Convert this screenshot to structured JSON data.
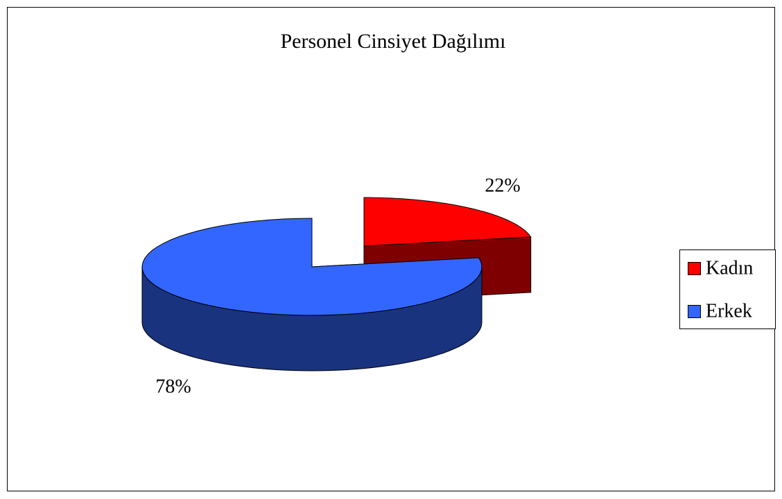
{
  "chart_data": {
    "type": "pie3d",
    "title": "Personel Cinsiyet Dağılımı",
    "categories": [
      "Kadın",
      "Erkek"
    ],
    "values": [
      22,
      78
    ],
    "value_labels": [
      "22%",
      "78%"
    ],
    "colors": [
      "#ff0000",
      "#3366ff"
    ],
    "legend": "right"
  }
}
